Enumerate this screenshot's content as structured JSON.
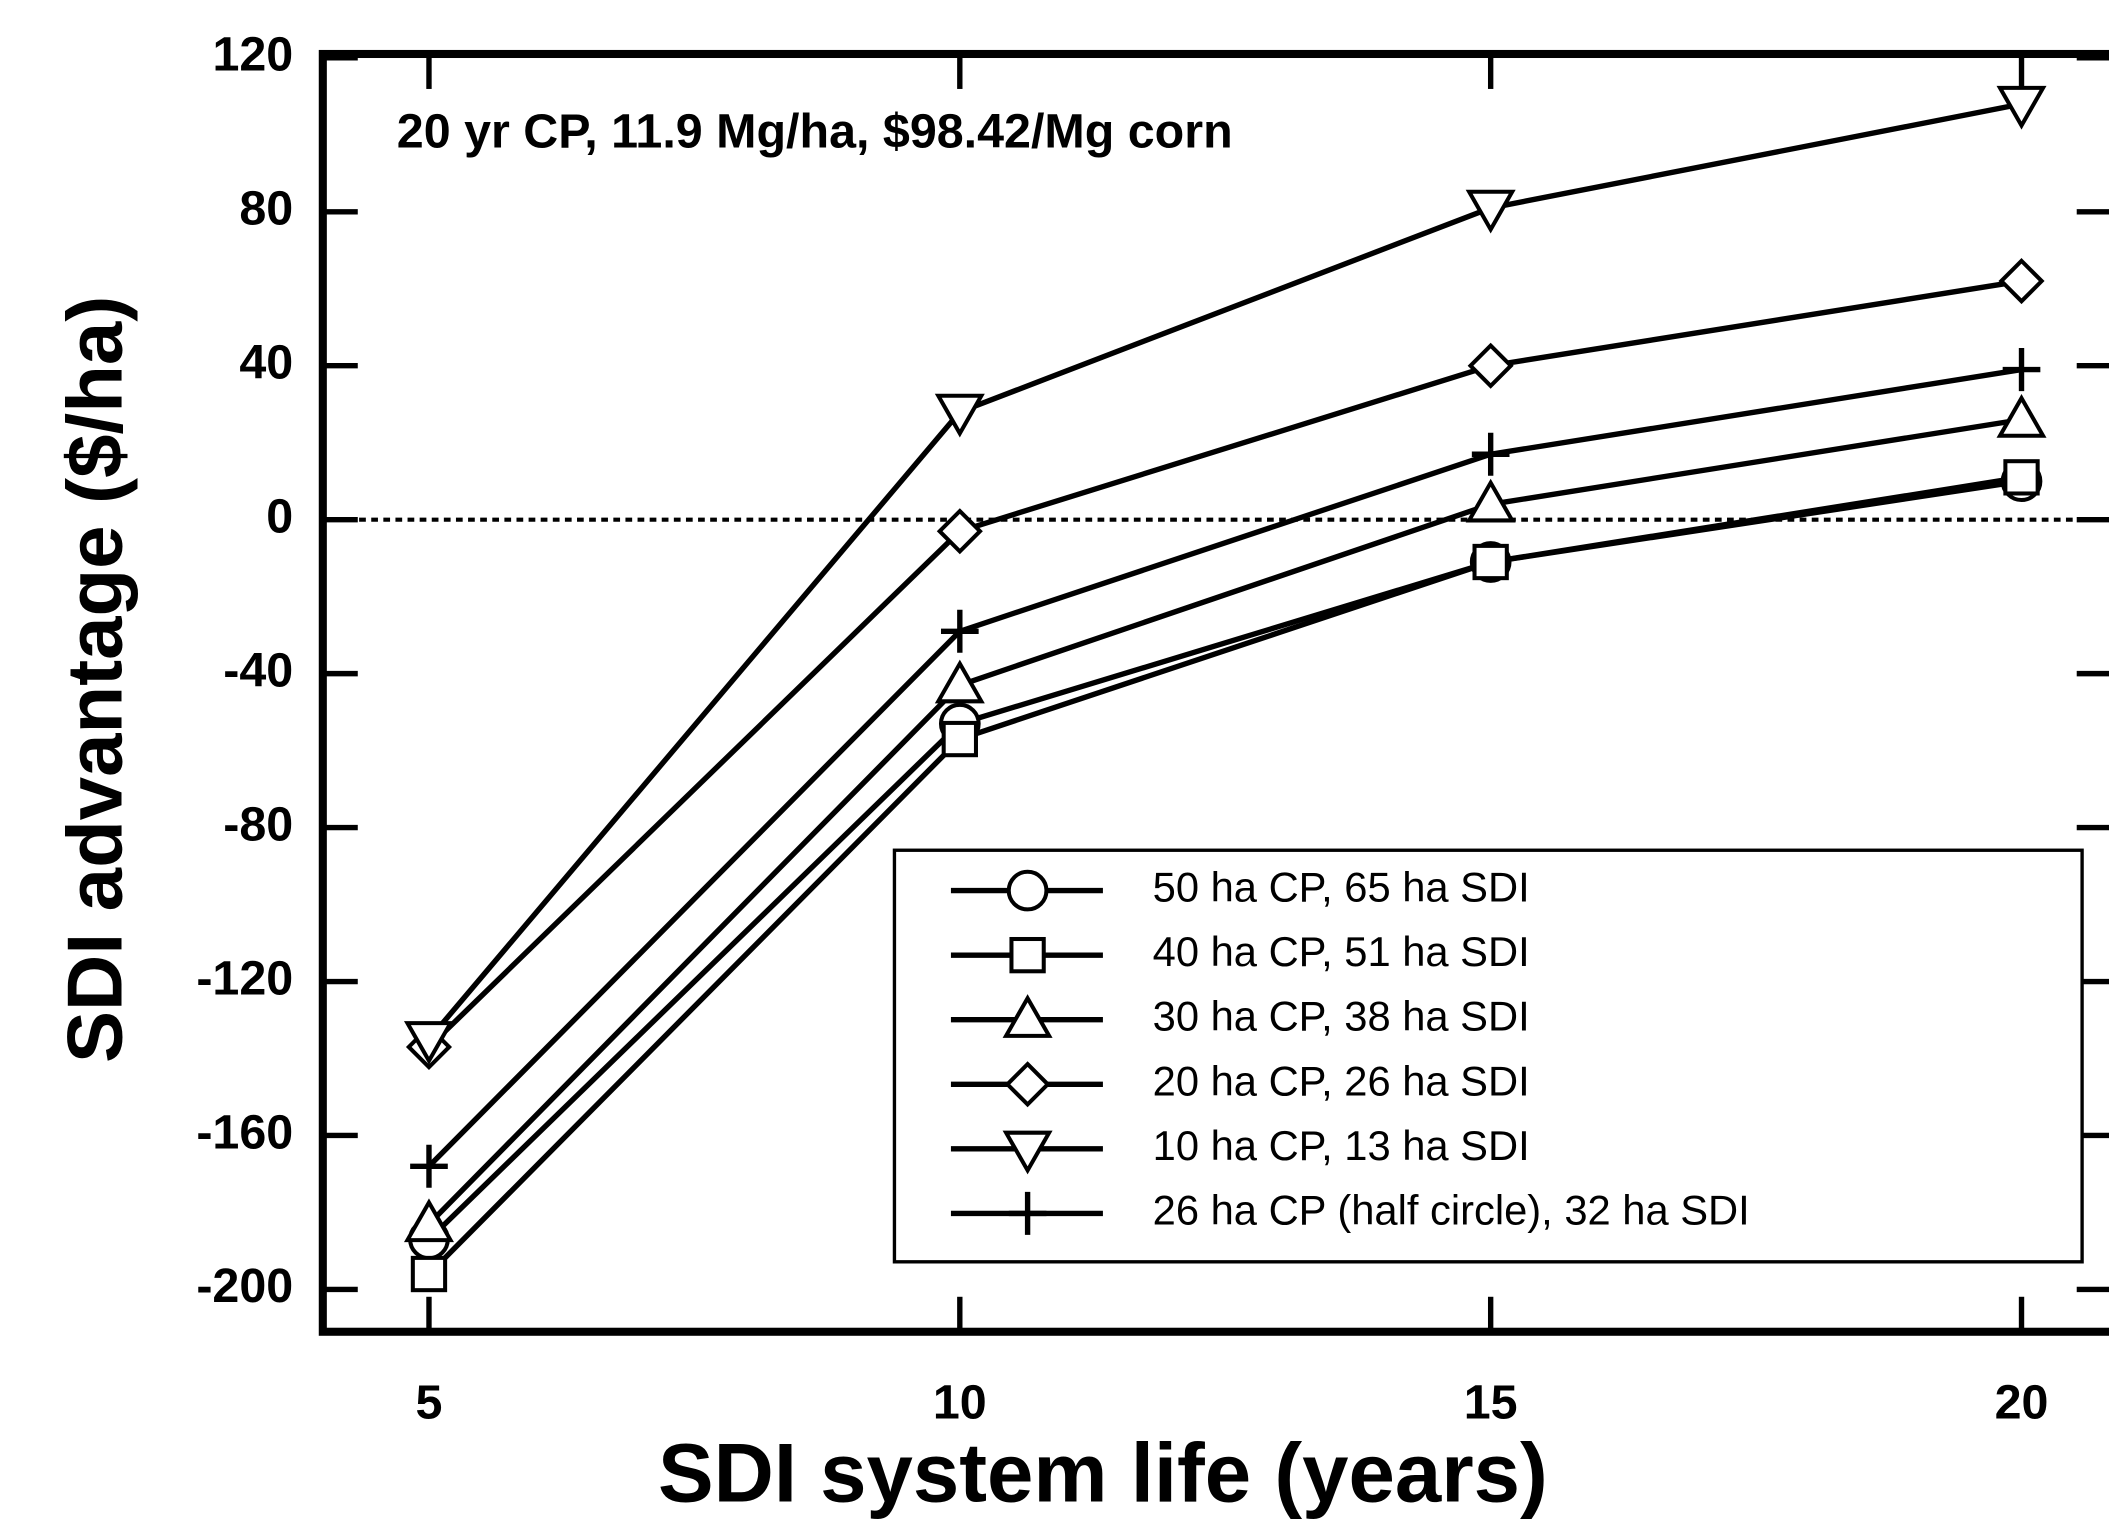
{
  "chart_data": {
    "type": "line",
    "annotation": "20 yr CP,  11.9 Mg/ha,   $98.42/Mg corn",
    "xlabel": "SDI system life (years)",
    "ylabel": "SDI advantage ($/ha)",
    "x": [
      5,
      10,
      15,
      20
    ],
    "xlim": [
      4,
      20.9
    ],
    "xticks": [
      5,
      10,
      15,
      20
    ],
    "ylim": [
      -211,
      121
    ],
    "yticks": [
      -200,
      -160,
      -120,
      -80,
      -40,
      0,
      40,
      80,
      120
    ],
    "reference_line": 0,
    "legend": "lower right",
    "series": [
      {
        "name": "50 ha CP,  65 ha SDI",
        "marker": "circle",
        "color": "#000000",
        "values": [
          -187,
          -53,
          -11,
          10
        ]
      },
      {
        "name": "40 ha CP,  51 ha SDI",
        "marker": "square",
        "color": "#000000",
        "values": [
          -196,
          -57,
          -11,
          11
        ]
      },
      {
        "name": "30 ha CP,  38 ha SDI",
        "marker": "triangle",
        "color": "#000000",
        "values": [
          -183,
          -43,
          4,
          26
        ]
      },
      {
        "name": "20 ha CP,  26 ha SDI",
        "marker": "diamond",
        "color": "#000000",
        "values": [
          -137,
          -3,
          40,
          62
        ]
      },
      {
        "name": "10 ha CP,  13 ha SDI",
        "marker": "inverted-triangle",
        "color": "#000000",
        "values": [
          -135,
          28,
          81,
          108
        ]
      },
      {
        "name": "26 ha CP (half circle),  32 ha SDI",
        "marker": "plus",
        "color": "#000000",
        "values": [
          -168,
          -29,
          17,
          39
        ]
      }
    ]
  }
}
